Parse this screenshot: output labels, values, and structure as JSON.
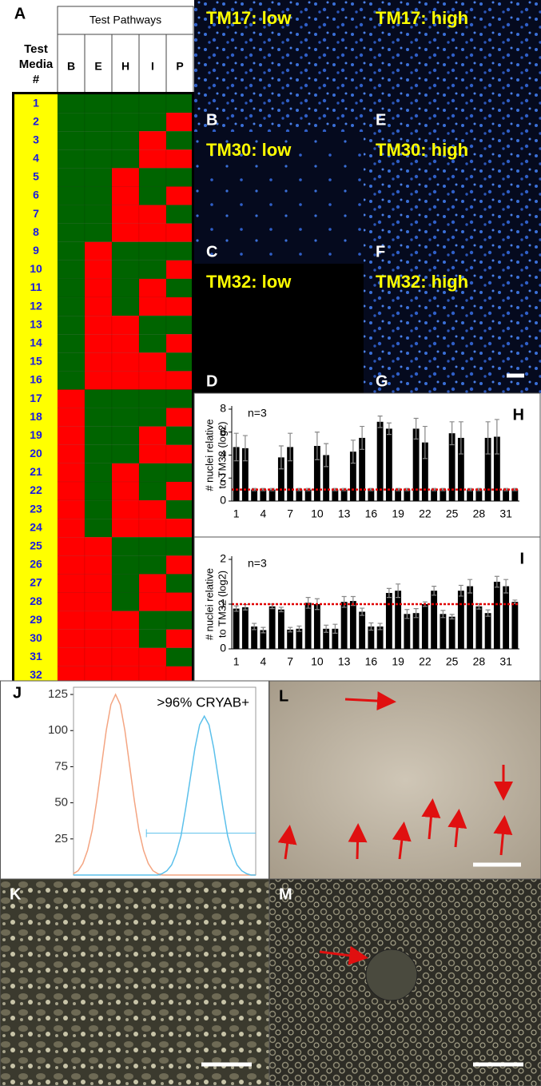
{
  "table": {
    "letter": "A",
    "group_header": "Test Pathways",
    "row_header": [
      "Test",
      "Media",
      "#"
    ],
    "columns": [
      "B",
      "E",
      "H",
      "I",
      "P"
    ],
    "rows": [
      {
        "label": "1",
        "cells": [
          "darkgreen",
          "darkgreen",
          "darkgreen",
          "darkgreen",
          "darkgreen"
        ]
      },
      {
        "label": "2",
        "cells": [
          "darkgreen",
          "darkgreen",
          "darkgreen",
          "darkgreen",
          "red"
        ]
      },
      {
        "label": "3",
        "cells": [
          "darkgreen",
          "darkgreen",
          "darkgreen",
          "red",
          "darkgreen"
        ]
      },
      {
        "label": "4",
        "cells": [
          "darkgreen",
          "darkgreen",
          "darkgreen",
          "red",
          "red"
        ]
      },
      {
        "label": "5",
        "cells": [
          "darkgreen",
          "darkgreen",
          "red",
          "darkgreen",
          "darkgreen"
        ]
      },
      {
        "label": "6",
        "cells": [
          "darkgreen",
          "darkgreen",
          "red",
          "darkgreen",
          "red"
        ]
      },
      {
        "label": "7",
        "cells": [
          "darkgreen",
          "darkgreen",
          "red",
          "red",
          "darkgreen"
        ]
      },
      {
        "label": "8",
        "cells": [
          "darkgreen",
          "darkgreen",
          "red",
          "red",
          "red"
        ]
      },
      {
        "label": "9",
        "cells": [
          "darkgreen",
          "red",
          "darkgreen",
          "darkgreen",
          "darkgreen"
        ]
      },
      {
        "label": "10",
        "cells": [
          "darkgreen",
          "red",
          "darkgreen",
          "darkgreen",
          "red"
        ]
      },
      {
        "label": "11",
        "cells": [
          "darkgreen",
          "red",
          "darkgreen",
          "red",
          "darkgreen"
        ]
      },
      {
        "label": "12",
        "cells": [
          "darkgreen",
          "red",
          "darkgreen",
          "red",
          "red"
        ]
      },
      {
        "label": "13",
        "cells": [
          "darkgreen",
          "red",
          "red",
          "darkgreen",
          "darkgreen"
        ]
      },
      {
        "label": "14",
        "cells": [
          "darkgreen",
          "red",
          "red",
          "darkgreen",
          "red"
        ]
      },
      {
        "label": "15",
        "cells": [
          "darkgreen",
          "red",
          "red",
          "red",
          "darkgreen"
        ]
      },
      {
        "label": "16",
        "cells": [
          "darkgreen",
          "red",
          "red",
          "red",
          "red"
        ]
      },
      {
        "label": "17",
        "cells": [
          "red",
          "darkgreen",
          "darkgreen",
          "darkgreen",
          "darkgreen"
        ]
      },
      {
        "label": "18",
        "cells": [
          "red",
          "darkgreen",
          "darkgreen",
          "darkgreen",
          "red"
        ]
      },
      {
        "label": "19",
        "cells": [
          "red",
          "darkgreen",
          "darkgreen",
          "red",
          "darkgreen"
        ]
      },
      {
        "label": "20",
        "cells": [
          "red",
          "darkgreen",
          "darkgreen",
          "red",
          "red"
        ]
      },
      {
        "label": "21",
        "cells": [
          "red",
          "darkgreen",
          "red",
          "darkgreen",
          "darkgreen"
        ]
      },
      {
        "label": "22",
        "cells": [
          "red",
          "darkgreen",
          "red",
          "darkgreen",
          "red"
        ]
      },
      {
        "label": "23",
        "cells": [
          "red",
          "darkgreen",
          "red",
          "red",
          "darkgreen"
        ]
      },
      {
        "label": "24",
        "cells": [
          "red",
          "darkgreen",
          "red",
          "red",
          "red"
        ]
      },
      {
        "label": "25",
        "cells": [
          "red",
          "red",
          "darkgreen",
          "darkgreen",
          "darkgreen"
        ]
      },
      {
        "label": "26",
        "cells": [
          "red",
          "red",
          "darkgreen",
          "darkgreen",
          "red"
        ]
      },
      {
        "label": "27",
        "cells": [
          "red",
          "red",
          "darkgreen",
          "red",
          "darkgreen"
        ]
      },
      {
        "label": "28",
        "cells": [
          "red",
          "red",
          "darkgreen",
          "red",
          "red"
        ]
      },
      {
        "label": "29",
        "cells": [
          "red",
          "red",
          "red",
          "darkgreen",
          "darkgreen"
        ]
      },
      {
        "label": "30",
        "cells": [
          "red",
          "red",
          "red",
          "darkgreen",
          "red"
        ]
      },
      {
        "label": "31",
        "cells": [
          "red",
          "red",
          "red",
          "red",
          "darkgreen"
        ]
      },
      {
        "label": "32",
        "cells": [
          "red",
          "red",
          "red",
          "red",
          "red"
        ]
      }
    ]
  },
  "images": [
    {
      "letter": "B",
      "caption": "TM17: low"
    },
    {
      "letter": "E",
      "caption": "TM17: high"
    },
    {
      "letter": "C",
      "caption": "TM30: low"
    },
    {
      "letter": "F",
      "caption": "TM30: high"
    },
    {
      "letter": "D",
      "caption": "TM32: low"
    },
    {
      "letter": "G",
      "caption": "TM32: high"
    },
    {
      "letter": "L"
    },
    {
      "letter": "K"
    },
    {
      "letter": "M"
    }
  ],
  "chart_data": [
    {
      "type": "bar",
      "letter": "H",
      "annotation": "n=3",
      "y_label": [
        "# nuclei relative",
        "to TM32 (log2)"
      ],
      "color": "#000000",
      "categories": [
        "1",
        null,
        null,
        "4",
        null,
        null,
        "7",
        null,
        null,
        "10",
        null,
        null,
        "13",
        null,
        null,
        "16",
        null,
        null,
        "19",
        null,
        null,
        "22",
        null,
        null,
        "25",
        null,
        null,
        "28",
        null,
        null,
        "31",
        null
      ],
      "values": [
        4.7,
        4.6,
        1,
        1,
        1,
        3.8,
        4.7,
        1,
        1,
        4.8,
        4.0,
        1,
        1,
        4.3,
        5.5,
        1,
        6.9,
        6.3,
        1,
        1,
        6.3,
        5.1,
        1,
        1,
        5.9,
        5.5,
        1,
        1,
        5.5,
        5.6,
        1,
        1
      ],
      "errors": [
        1.2,
        1.1,
        0.1,
        0.1,
        0.1,
        1.0,
        1.2,
        0.1,
        0.1,
        1.2,
        1.0,
        0.1,
        0.1,
        1.0,
        1.0,
        0.1,
        0.5,
        0.5,
        0.1,
        0.1,
        0.9,
        1.4,
        0.1,
        0.1,
        1.0,
        1.4,
        0.1,
        0.1,
        1.4,
        1.5,
        0.1,
        0.1
      ],
      "reference_line": 1,
      "reference_color": "#e00000",
      "ylim": [
        0,
        8
      ],
      "yticks": [
        0,
        2,
        4,
        6,
        8
      ]
    },
    {
      "type": "bar",
      "letter": "I",
      "annotation": "n=3",
      "y_label": [
        "# nuclei relative",
        "to TM32 (log2)"
      ],
      "color": "#000000",
      "categories": [
        "1",
        null,
        null,
        "4",
        null,
        null,
        "7",
        null,
        null,
        "10",
        null,
        null,
        "13",
        null,
        null,
        "16",
        null,
        null,
        "19",
        null,
        null,
        "22",
        null,
        null,
        "25",
        null,
        null,
        "28",
        null,
        null,
        "31",
        null
      ],
      "values": [
        0.9,
        0.93,
        0.5,
        0.42,
        0.95,
        0.88,
        0.43,
        0.45,
        1.03,
        1.0,
        0.45,
        0.45,
        1.05,
        1.07,
        0.83,
        0.5,
        0.5,
        1.25,
        1.3,
        0.78,
        0.8,
        1.0,
        1.3,
        0.78,
        0.72,
        1.3,
        1.4,
        0.95,
        0.8,
        1.5,
        1.4,
        1.05
      ],
      "errors": [
        0.06,
        0.06,
        0.07,
        0.06,
        0.05,
        0.05,
        0.05,
        0.06,
        0.12,
        0.12,
        0.08,
        0.1,
        0.12,
        0.1,
        0.08,
        0.08,
        0.07,
        0.1,
        0.15,
        0.1,
        0.1,
        0.05,
        0.1,
        0.08,
        0.05,
        0.12,
        0.15,
        0.06,
        0.07,
        0.12,
        0.15,
        0.04
      ],
      "reference_line": 1,
      "reference_color": "#e00000",
      "ylim": [
        0,
        2
      ],
      "yticks": [
        0,
        1,
        2
      ]
    },
    {
      "type": "line",
      "letter": "J",
      "annotation": ">96% CRYAB+",
      "series": [
        {
          "color": "#f4a582",
          "values": [
            1,
            3,
            8,
            17,
            31,
            52,
            76,
            100,
            118,
            125,
            118,
            100,
            76,
            52,
            31,
            17,
            8,
            3,
            1,
            0,
            0,
            0,
            0,
            0,
            0,
            0,
            0,
            0,
            0,
            0,
            0,
            0,
            0,
            0,
            0,
            0,
            0,
            0,
            0,
            0
          ]
        },
        {
          "color": "#5bc0eb",
          "values": [
            0,
            0,
            0,
            0,
            0,
            0,
            0,
            0,
            0,
            0,
            0,
            0,
            0,
            0,
            0,
            0,
            0,
            0,
            0,
            1,
            3,
            7,
            15,
            27,
            46,
            67,
            88,
            104,
            110,
            104,
            88,
            67,
            46,
            27,
            15,
            7,
            3,
            1,
            0,
            0
          ]
        }
      ],
      "gate_level": 29,
      "gate_color": "#5bc0eb",
      "ylim": [
        0,
        130
      ],
      "yticks": [
        25,
        50,
        75,
        100,
        125
      ]
    }
  ]
}
